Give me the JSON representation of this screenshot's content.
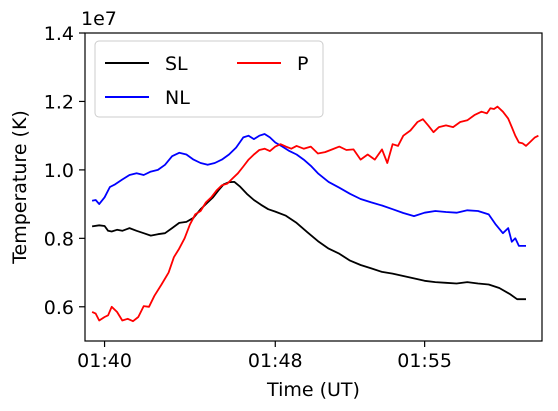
{
  "chart_data": {
    "type": "line",
    "xlabel": "Time (UT)",
    "ylabel": "Temperature (K)",
    "y_multiplier_label": "1e7",
    "x_range": [
      "01:39:25",
      "01:59:45"
    ],
    "ylim": [
      0.5,
      1.4
    ],
    "x_ticks": [
      {
        "time": "01:40:00",
        "label": "01:40"
      },
      {
        "time": "01:48:00",
        "label": "01:48"
      },
      {
        "time": "01:55:00",
        "label": "01:55"
      }
    ],
    "y_ticks": [
      {
        "value": 0.6,
        "label": "0.6"
      },
      {
        "value": 0.8,
        "label": "0.8"
      },
      {
        "value": 1.0,
        "label": "1.0"
      },
      {
        "value": 1.2,
        "label": "1.2"
      },
      {
        "value": 1.4,
        "label": "1.4"
      }
    ],
    "grid": false,
    "legend": {
      "placement": "top-left",
      "columns": 2
    },
    "series": [
      {
        "name": "SL",
        "color": "#000000",
        "points": [
          [
            "01:39:25",
            0.835
          ],
          [
            "01:39:45",
            0.838
          ],
          [
            "01:40:00",
            0.836
          ],
          [
            "01:40:10",
            0.822
          ],
          [
            "01:40:20",
            0.82
          ],
          [
            "01:40:35",
            0.825
          ],
          [
            "01:40:50",
            0.822
          ],
          [
            "01:41:10",
            0.83
          ],
          [
            "01:41:30",
            0.822
          ],
          [
            "01:41:50",
            0.815
          ],
          [
            "01:42:10",
            0.808
          ],
          [
            "01:42:30",
            0.812
          ],
          [
            "01:42:50",
            0.815
          ],
          [
            "01:43:10",
            0.83
          ],
          [
            "01:43:30",
            0.845
          ],
          [
            "01:43:50",
            0.848
          ],
          [
            "01:44:10",
            0.86
          ],
          [
            "01:44:30",
            0.885
          ],
          [
            "01:44:50",
            0.905
          ],
          [
            "01:45:05",
            0.92
          ],
          [
            "01:45:20",
            0.94
          ],
          [
            "01:45:35",
            0.958
          ],
          [
            "01:45:50",
            0.964
          ],
          [
            "01:46:05",
            0.965
          ],
          [
            "01:46:20",
            0.952
          ],
          [
            "01:46:40",
            0.93
          ],
          [
            "01:47:00",
            0.912
          ],
          [
            "01:47:20",
            0.898
          ],
          [
            "01:47:40",
            0.885
          ],
          [
            "01:48:00",
            0.878
          ],
          [
            "01:48:30",
            0.866
          ],
          [
            "01:49:00",
            0.845
          ],
          [
            "01:49:30",
            0.818
          ],
          [
            "01:50:00",
            0.792
          ],
          [
            "01:50:30",
            0.77
          ],
          [
            "01:51:00",
            0.755
          ],
          [
            "01:51:30",
            0.735
          ],
          [
            "01:52:00",
            0.722
          ],
          [
            "01:52:30",
            0.712
          ],
          [
            "01:53:00",
            0.702
          ],
          [
            "01:53:30",
            0.697
          ],
          [
            "01:54:00",
            0.69
          ],
          [
            "01:54:30",
            0.683
          ],
          [
            "01:55:00",
            0.676
          ],
          [
            "01:55:30",
            0.672
          ],
          [
            "01:56:00",
            0.67
          ],
          [
            "01:56:30",
            0.668
          ],
          [
            "01:57:00",
            0.672
          ],
          [
            "01:57:30",
            0.668
          ],
          [
            "01:58:00",
            0.665
          ],
          [
            "01:58:30",
            0.655
          ],
          [
            "01:59:00",
            0.637
          ],
          [
            "01:59:20",
            0.622
          ],
          [
            "01:59:45",
            0.622
          ]
        ]
      },
      {
        "name": "NL",
        "color": "#0000ff",
        "points": [
          [
            "01:39:25",
            0.91
          ],
          [
            "01:39:35",
            0.912
          ],
          [
            "01:39:45",
            0.9
          ],
          [
            "01:40:00",
            0.92
          ],
          [
            "01:40:15",
            0.95
          ],
          [
            "01:40:30",
            0.958
          ],
          [
            "01:40:50",
            0.972
          ],
          [
            "01:41:10",
            0.985
          ],
          [
            "01:41:30",
            0.99
          ],
          [
            "01:41:50",
            0.985
          ],
          [
            "01:42:10",
            0.995
          ],
          [
            "01:42:30",
            1.0
          ],
          [
            "01:42:50",
            1.015
          ],
          [
            "01:43:10",
            1.04
          ],
          [
            "01:43:30",
            1.05
          ],
          [
            "01:43:50",
            1.045
          ],
          [
            "01:44:10",
            1.03
          ],
          [
            "01:44:30",
            1.02
          ],
          [
            "01:44:50",
            1.015
          ],
          [
            "01:45:10",
            1.02
          ],
          [
            "01:45:30",
            1.03
          ],
          [
            "01:45:50",
            1.045
          ],
          [
            "01:46:10",
            1.065
          ],
          [
            "01:46:30",
            1.095
          ],
          [
            "01:46:45",
            1.1
          ],
          [
            "01:47:00",
            1.09
          ],
          [
            "01:47:15",
            1.1
          ],
          [
            "01:47:30",
            1.105
          ],
          [
            "01:47:45",
            1.095
          ],
          [
            "01:48:00",
            1.08
          ],
          [
            "01:48:20",
            1.068
          ],
          [
            "01:48:40",
            1.055
          ],
          [
            "01:49:00",
            1.045
          ],
          [
            "01:49:20",
            1.03
          ],
          [
            "01:49:40",
            1.012
          ],
          [
            "01:50:00",
            0.99
          ],
          [
            "01:50:30",
            0.965
          ],
          [
            "01:51:00",
            0.948
          ],
          [
            "01:51:30",
            0.93
          ],
          [
            "01:52:00",
            0.915
          ],
          [
            "01:52:30",
            0.905
          ],
          [
            "01:53:00",
            0.896
          ],
          [
            "01:53:30",
            0.885
          ],
          [
            "01:54:00",
            0.874
          ],
          [
            "01:54:30",
            0.865
          ],
          [
            "01:55:00",
            0.875
          ],
          [
            "01:55:30",
            0.88
          ],
          [
            "01:56:00",
            0.877
          ],
          [
            "01:56:30",
            0.875
          ],
          [
            "01:57:00",
            0.882
          ],
          [
            "01:57:30",
            0.88
          ],
          [
            "01:58:00",
            0.87
          ],
          [
            "01:58:20",
            0.84
          ],
          [
            "01:58:40",
            0.815
          ],
          [
            "01:58:55",
            0.83
          ],
          [
            "01:59:05",
            0.79
          ],
          [
            "01:59:15",
            0.8
          ],
          [
            "01:59:25",
            0.778
          ],
          [
            "01:59:45",
            0.778
          ]
        ]
      },
      {
        "name": "P",
        "color": "#ff0000",
        "points": [
          [
            "01:39:25",
            0.585
          ],
          [
            "01:39:35",
            0.58
          ],
          [
            "01:39:45",
            0.56
          ],
          [
            "01:40:00",
            0.57
          ],
          [
            "01:40:10",
            0.575
          ],
          [
            "01:40:20",
            0.6
          ],
          [
            "01:40:35",
            0.585
          ],
          [
            "01:40:50",
            0.56
          ],
          [
            "01:41:05",
            0.565
          ],
          [
            "01:41:20",
            0.558
          ],
          [
            "01:41:35",
            0.57
          ],
          [
            "01:41:50",
            0.602
          ],
          [
            "01:42:05",
            0.6
          ],
          [
            "01:42:20",
            0.632
          ],
          [
            "01:42:40",
            0.665
          ],
          [
            "01:43:00",
            0.7
          ],
          [
            "01:43:15",
            0.745
          ],
          [
            "01:43:30",
            0.77
          ],
          [
            "01:43:45",
            0.8
          ],
          [
            "01:44:00",
            0.84
          ],
          [
            "01:44:15",
            0.87
          ],
          [
            "01:44:30",
            0.88
          ],
          [
            "01:44:45",
            0.905
          ],
          [
            "01:45:00",
            0.92
          ],
          [
            "01:45:15",
            0.94
          ],
          [
            "01:45:30",
            0.955
          ],
          [
            "01:45:45",
            0.96
          ],
          [
            "01:46:00",
            0.975
          ],
          [
            "01:46:15",
            0.99
          ],
          [
            "01:46:30",
            1.01
          ],
          [
            "01:46:45",
            1.03
          ],
          [
            "01:47:00",
            1.045
          ],
          [
            "01:47:15",
            1.058
          ],
          [
            "01:47:30",
            1.062
          ],
          [
            "01:47:45",
            1.055
          ],
          [
            "01:48:00",
            1.068
          ],
          [
            "01:48:15",
            1.075
          ],
          [
            "01:48:30",
            1.068
          ],
          [
            "01:48:45",
            1.062
          ],
          [
            "01:49:00",
            1.07
          ],
          [
            "01:49:20",
            1.062
          ],
          [
            "01:49:40",
            1.068
          ],
          [
            "01:50:00",
            1.048
          ],
          [
            "01:50:20",
            1.052
          ],
          [
            "01:50:40",
            1.06
          ],
          [
            "01:51:00",
            1.068
          ],
          [
            "01:51:20",
            1.058
          ],
          [
            "01:51:40",
            1.06
          ],
          [
            "01:52:00",
            1.03
          ],
          [
            "01:52:20",
            1.045
          ],
          [
            "01:52:40",
            1.03
          ],
          [
            "01:53:00",
            1.06
          ],
          [
            "01:53:15",
            1.02
          ],
          [
            "01:53:30",
            1.075
          ],
          [
            "01:53:45",
            1.07
          ],
          [
            "01:54:00",
            1.1
          ],
          [
            "01:54:20",
            1.115
          ],
          [
            "01:54:40",
            1.14
          ],
          [
            "01:54:55",
            1.148
          ],
          [
            "01:55:10",
            1.13
          ],
          [
            "01:55:25",
            1.11
          ],
          [
            "01:55:40",
            1.125
          ],
          [
            "01:56:00",
            1.13
          ],
          [
            "01:56:20",
            1.125
          ],
          [
            "01:56:40",
            1.14
          ],
          [
            "01:57:00",
            1.145
          ],
          [
            "01:57:20",
            1.16
          ],
          [
            "01:57:40",
            1.17
          ],
          [
            "01:57:55",
            1.165
          ],
          [
            "01:58:05",
            1.18
          ],
          [
            "01:58:15",
            1.178
          ],
          [
            "01:58:25",
            1.185
          ],
          [
            "01:58:40",
            1.17
          ],
          [
            "01:58:55",
            1.15
          ],
          [
            "01:59:05",
            1.125
          ],
          [
            "01:59:15",
            1.1
          ],
          [
            "01:59:25",
            1.08
          ],
          [
            "01:59:35",
            1.078
          ],
          [
            "01:59:45",
            1.07
          ],
          [
            "01:59:55",
            1.08
          ],
          [
            "02:00:10",
            1.095
          ],
          [
            "02:00:20",
            1.1
          ]
        ]
      }
    ]
  }
}
